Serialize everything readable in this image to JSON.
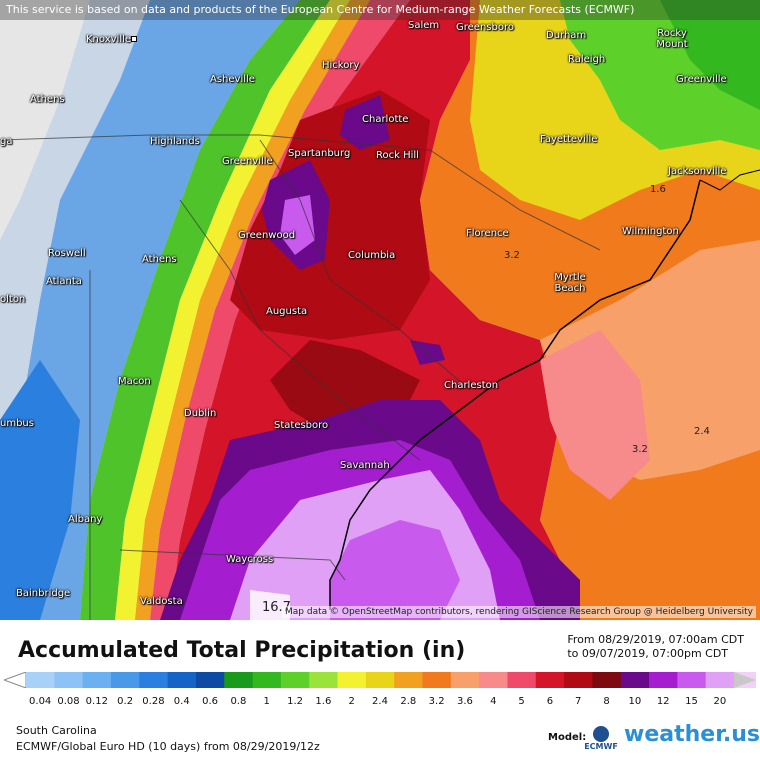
{
  "disclaimer": "This service is based on data and products of the European Centre for Medium-range Weather Forecasts (ECMWF)",
  "attribution": "Map data © OpenStreetMap contributors, rendering GIScience Research Group @ Heidelberg University",
  "cities": [
    {
      "name": "Knoxville"
    },
    {
      "name": "Salem"
    },
    {
      "name": "Greensboro"
    },
    {
      "name": "Durham"
    },
    {
      "name": "Rocky Mount"
    },
    {
      "name": "Raleigh"
    },
    {
      "name": "Asheville"
    },
    {
      "name": "Hickory"
    },
    {
      "name": "Athens"
    },
    {
      "name": "Greenville"
    },
    {
      "name": "Charlotte"
    },
    {
      "name": "Highlands"
    },
    {
      "name": "Spartanburg"
    },
    {
      "name": "Rock Hill"
    },
    {
      "name": "Fayetteville"
    },
    {
      "name": "Greenville"
    },
    {
      "name": "Jacksonville"
    },
    {
      "name": "Greenwood"
    },
    {
      "name": "Florence"
    },
    {
      "name": "Wilmington"
    },
    {
      "name": "Roswell"
    },
    {
      "name": "Athens"
    },
    {
      "name": "Columbia"
    },
    {
      "name": "Myrtle Beach"
    },
    {
      "name": "Atlanta"
    },
    {
      "name": "Augusta"
    },
    {
      "name": "Macon"
    },
    {
      "name": "Charleston"
    },
    {
      "name": "Dublin"
    },
    {
      "name": "Statesboro"
    },
    {
      "name": "Savannah"
    },
    {
      "name": "Albany"
    },
    {
      "name": "Waycross"
    },
    {
      "name": "Bainbridge"
    },
    {
      "name": "Valdosta"
    },
    {
      "name": "olton"
    },
    {
      "name": "umbus"
    },
    {
      "name": "ga"
    }
  ],
  "contour_labels": [
    "1.6",
    "3.2",
    "3.2",
    "2.4",
    "16.7"
  ],
  "legend": {
    "title": "Accumulated Total Precipitation (in)",
    "from": "From 08/29/2019, 07:00am CDT",
    "to": "to 09/07/2019, 07:00pm CDT",
    "ticks": [
      "0.04",
      "0.08",
      "0.12",
      "0.2",
      "0.28",
      "0.4",
      "0.6",
      "0.8",
      "1",
      "1.2",
      "1.6",
      "2",
      "2.4",
      "2.8",
      "3.2",
      "3.6",
      "4",
      "5",
      "6",
      "7",
      "8",
      "10",
      "12",
      "15",
      "20"
    ],
    "colors": [
      "#a9d1f7",
      "#8cc2f5",
      "#6bb0f0",
      "#4a98e8",
      "#2b7fde",
      "#1464c8",
      "#0d4aa3",
      "#1a9a1a",
      "#33b81f",
      "#5dd12a",
      "#99e33a",
      "#f2f230",
      "#e8d419",
      "#f2a020",
      "#f07a1c",
      "#f7a06a",
      "#f78a8a",
      "#f04a6a",
      "#d41428",
      "#b00a14",
      "#7d0a10",
      "#6a0a8a",
      "#a41ed0",
      "#c85aee",
      "#e0a0f5",
      "#f3d0f8",
      "#c8c8c8"
    ],
    "region": "South Carolina",
    "model": "ECMWF/Global Euro HD (10 days) from 08/29/2019/12z",
    "model_label": "Model:",
    "ecmwf_label": "ECMWF",
    "brand": "weather.us"
  }
}
